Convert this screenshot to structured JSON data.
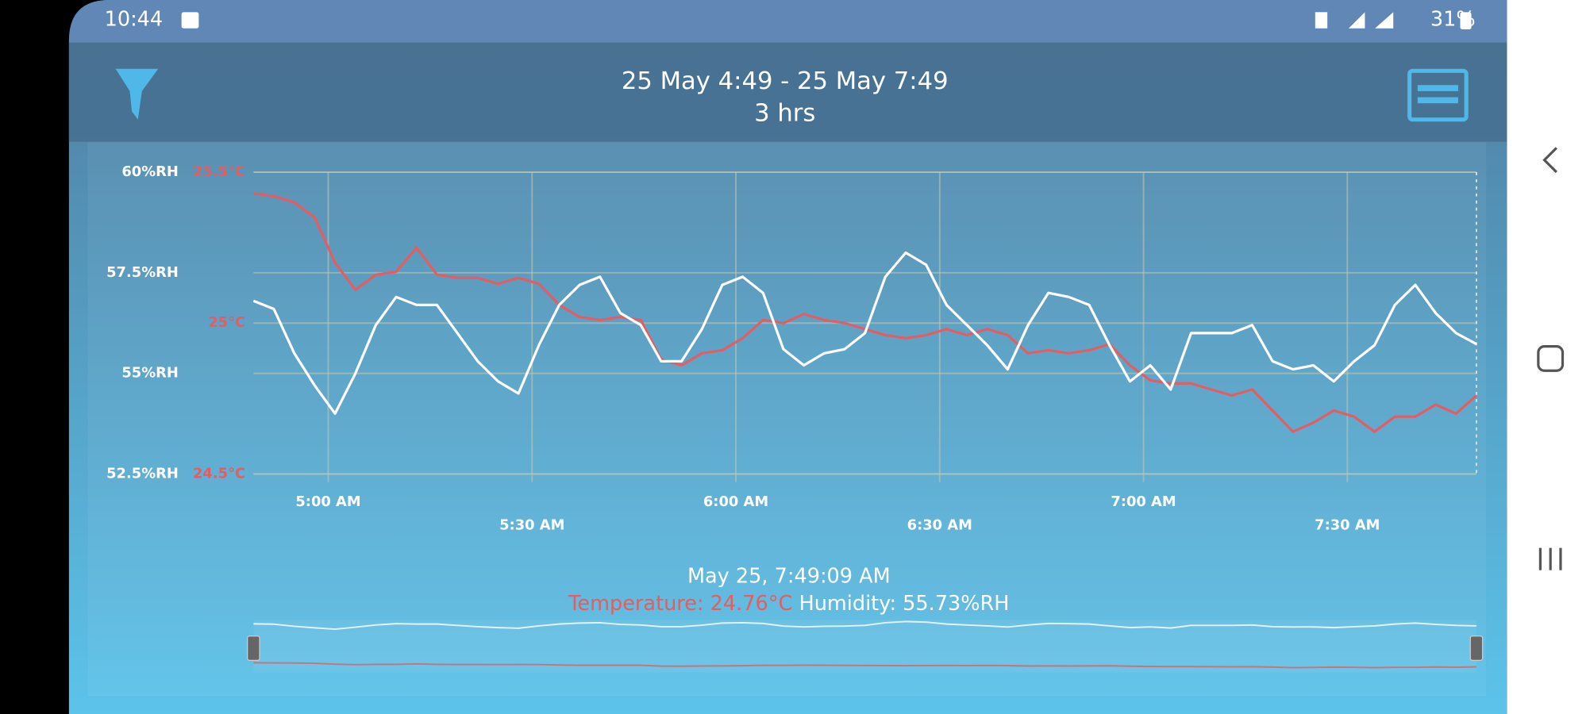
{
  "status_bar": {
    "time": "10:44",
    "battery": "31%"
  },
  "header": {
    "range": "25 May 4:49 - 25 May 7:49",
    "duration": "3 hrs"
  },
  "chart_data": {
    "type": "line",
    "x": [
      289,
      292,
      295,
      298,
      301,
      304,
      307,
      310,
      313,
      316,
      319,
      322,
      325,
      328,
      331,
      334,
      337,
      340,
      343,
      346,
      349,
      352,
      355,
      358,
      361,
      364,
      367,
      370,
      373,
      376,
      379,
      382,
      385,
      388,
      391,
      394,
      397,
      400,
      403,
      406,
      409,
      412,
      415,
      418,
      421,
      424,
      427,
      430,
      433,
      436,
      439,
      442,
      445,
      448,
      451,
      454,
      457,
      460,
      463,
      466,
      469
    ],
    "xlim": [
      289,
      469
    ],
    "xticks": [
      {
        "value": 300,
        "label": "5:00 AM"
      },
      {
        "value": 330,
        "label": "5:30 AM"
      },
      {
        "value": 360,
        "label": "6:00 AM"
      },
      {
        "value": 390,
        "label": "6:30 AM"
      },
      {
        "value": 420,
        "label": "7:00 AM"
      },
      {
        "value": 450,
        "label": "7:30 AM"
      }
    ],
    "ylim": [
      52.5,
      60
    ],
    "yticks": [
      {
        "value": 52.5,
        "label": "52.5%RH"
      },
      {
        "value": 55,
        "label": "55%RH"
      },
      {
        "value": 57.5,
        "label": "57.5%RH"
      },
      {
        "value": 60,
        "label": "60%RH"
      }
    ],
    "y2lim": [
      24.5,
      25.5
    ],
    "y2ticks": [
      {
        "value": 24.5,
        "label": "24.5°C"
      },
      {
        "value": 25,
        "label": "25°C"
      },
      {
        "value": 25.5,
        "label": "25.5°C"
      }
    ],
    "grid": true,
    "series": [
      {
        "color": "#e35d62",
        "axis": "y2",
        "values": [
          25.43,
          25.42,
          25.4,
          25.35,
          25.2,
          25.11,
          25.16,
          25.17,
          25.25,
          25.16,
          25.15,
          25.15,
          25.13,
          25.15,
          25.13,
          25.06,
          25.02,
          25.01,
          25.02,
          25.01,
          24.88,
          24.86,
          24.9,
          24.91,
          24.95,
          25.01,
          25.0,
          25.03,
          25.01,
          25.0,
          24.98,
          24.96,
          24.95,
          24.96,
          24.98,
          24.96,
          24.98,
          24.96,
          24.9,
          24.91,
          24.9,
          24.91,
          24.93,
          24.86,
          24.81,
          24.8,
          24.8,
          24.78,
          24.76,
          24.78,
          24.71,
          24.64,
          24.67,
          24.71,
          24.69,
          24.64,
          24.69,
          24.69,
          24.73,
          24.7,
          24.76
        ]
      },
      {
        "color": "#ffffff",
        "values": [
          56.8,
          56.6,
          55.5,
          54.7,
          54.0,
          55.0,
          56.2,
          56.9,
          56.7,
          56.7,
          56.0,
          55.3,
          54.8,
          54.5,
          55.7,
          56.7,
          57.2,
          57.4,
          56.5,
          56.2,
          55.3,
          55.3,
          56.1,
          57.2,
          57.4,
          57.0,
          55.6,
          55.2,
          55.5,
          55.6,
          56.0,
          57.4,
          58.0,
          57.7,
          56.7,
          56.2,
          55.7,
          55.1,
          56.2,
          57.0,
          56.9,
          56.7,
          55.7,
          54.8,
          55.2,
          54.6,
          56.0,
          56.0,
          56.0,
          56.2,
          55.3,
          55.1,
          55.2,
          54.8,
          55.3,
          55.7,
          56.7,
          57.2,
          56.5,
          56.0,
          55.73
        ]
      }
    ]
  },
  "readout": {
    "time": "May 25, 7:49:09 AM",
    "temperature": "Temperature: 24.76°C",
    "humidity": "Humidity: 55.73%RH"
  }
}
